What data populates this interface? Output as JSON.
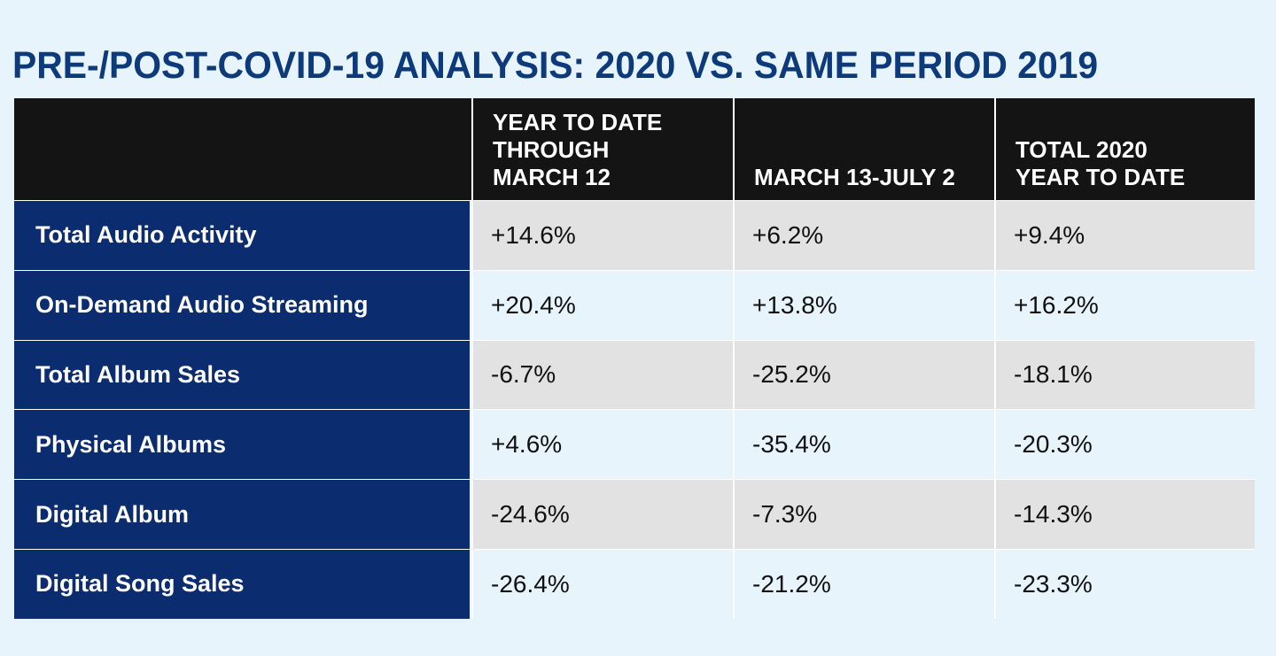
{
  "title": "PRE-/POST-COVID-19 ANALYSIS: 2020 VS. SAME PERIOD 2019",
  "chart_data": {
    "type": "table",
    "title": "PRE-/POST-COVID-19 ANALYSIS: 2020 VS. SAME PERIOD 2019",
    "columns": [
      "",
      "YEAR TO DATE\nTHROUGH\nMARCH 12",
      "MARCH 13-JULY 2",
      "TOTAL 2020\nYEAR TO DATE"
    ],
    "rows": [
      {
        "label": "Total Audio Activity",
        "values": [
          "+14.6%",
          "+6.2%",
          "+9.4%"
        ]
      },
      {
        "label": "On-Demand Audio Streaming",
        "values": [
          "+20.4%",
          "+13.8%",
          "+16.2%"
        ]
      },
      {
        "label": "Total Album Sales",
        "values": [
          "-6.7%",
          "-25.2%",
          "-18.1%"
        ]
      },
      {
        "label": "Physical Albums",
        "values": [
          "+4.6%",
          "-35.4%",
          "-20.3%"
        ]
      },
      {
        "label": "Digital Album",
        "values": [
          "-24.6%",
          "-7.3%",
          "-14.3%"
        ]
      },
      {
        "label": "Digital Song Sales",
        "values": [
          "-26.4%",
          "-21.2%",
          "-23.3%"
        ]
      }
    ]
  },
  "colors": {
    "title": "#0d3a7a",
    "header_bg": "#141414",
    "label_bg": "#0b2c6e",
    "stripe_gray": "#e2e2e2",
    "stripe_light": "#e8f4fc"
  }
}
